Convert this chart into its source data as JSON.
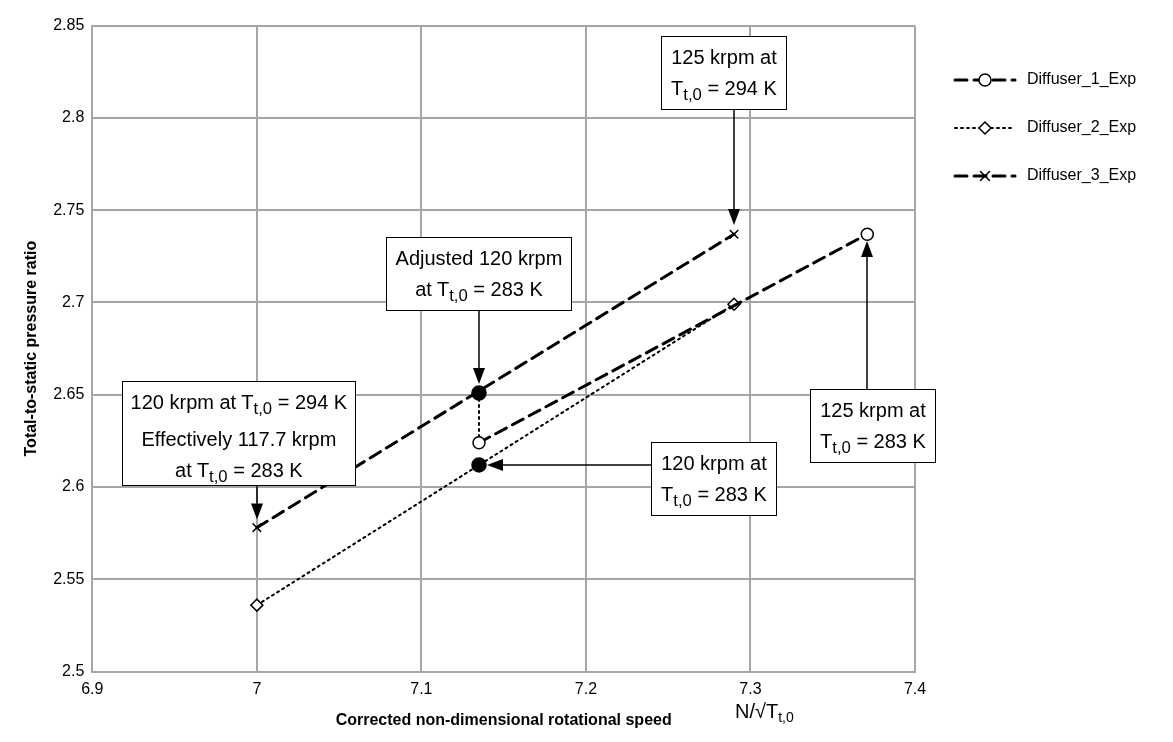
{
  "chart_data": {
    "type": "line",
    "xlabel": "Corrected non-dimensional rotational speed",
    "ylabel": "Total-to-static pressure ratio",
    "xlim": [
      6.9,
      7.4
    ],
    "xticks": [
      6.9,
      7,
      7.1,
      7.2,
      7.3,
      7.4
    ],
    "ylim": [
      2.5,
      2.85
    ],
    "yticks": [
      2.5,
      2.55,
      2.6,
      2.65,
      2.7,
      2.75,
      2.8,
      2.85
    ],
    "grid": true,
    "legend": "right",
    "series": [
      {
        "name": "Diffuser_1_Exp",
        "color": "#000000",
        "x": [
          7.135,
          7.371
        ],
        "values": [
          2.624,
          2.737
        ],
        "marker": "circle",
        "line_style": "dashed"
      },
      {
        "name": "Diffuser_2_Exp",
        "color": "#000000",
        "x": [
          7.0,
          7.29
        ],
        "values": [
          2.536,
          2.699
        ],
        "marker": "diamond",
        "line_style": "dotted"
      },
      {
        "name": "Diffuser_3_Exp",
        "color": "#000000",
        "x": [
          7.0,
          7.29
        ],
        "values": [
          2.578,
          2.737
        ],
        "marker": "cross",
        "line_style": "dashed"
      },
      {
        "type": "line",
        "color": "#000000",
        "x": [
          7.135,
          7.135
        ],
        "values": [
          2.651,
          2.624
        ],
        "marker": "none",
        "line_style": "dotted"
      },
      {
        "type": "scatter",
        "color": "#000000",
        "x": [
          7.135,
          7.135
        ],
        "values": [
          2.651,
          2.612
        ],
        "marker": "circle"
      }
    ],
    "annotations": [
      "125 krpm at\nT$_{t,0}$ = 294 K",
      "Adjusted 120 krpm\nat T$_{t,0}$ = 283 K",
      {
        "text": "120 krpm at T$_{t,0}$ = 294 K\nEffectively 117.7 krpm\nat T$_{t,0}$ = 283 K",
        "x": 7.0,
        "y": 2.578
      },
      "125 krpm at\nT$_{t,0}$ = 283 K",
      "120 krpm at\nT$_{t,0}$ = 283 K",
      "N/√T$_{t,0}$"
    ]
  }
}
